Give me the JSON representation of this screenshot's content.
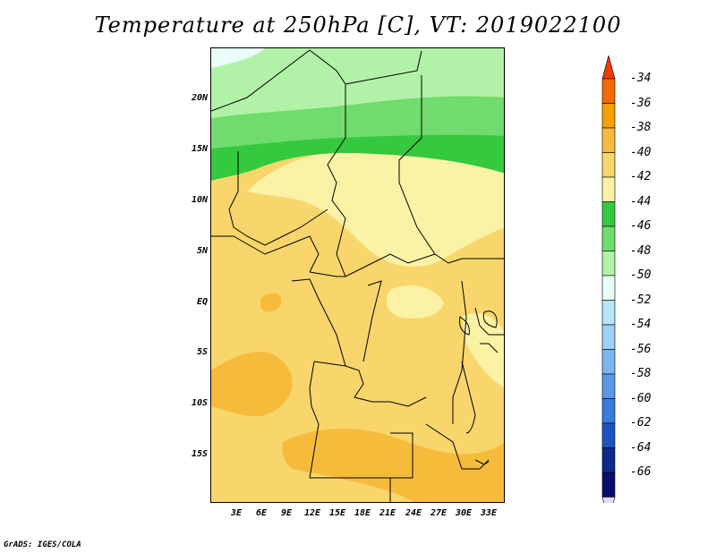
{
  "title": "Temperature at 250hPa [C], VT: 2019022100",
  "footer": "GrADS: IGES/COLA",
  "map": {
    "lat_labels": [
      "20N",
      "15N",
      "10N",
      "5N",
      "EQ",
      "5S",
      "10S",
      "15S"
    ],
    "lon_labels": [
      "3E",
      "6E",
      "9E",
      "12E",
      "15E",
      "18E",
      "21E",
      "24E",
      "27E",
      "30E",
      "33E"
    ]
  },
  "colorbar": {
    "labels": [
      "-34",
      "-36",
      "-38",
      "-40",
      "-42",
      "-44",
      "-46",
      "-48",
      "-50",
      "-52",
      "-54",
      "-56",
      "-58",
      "-60",
      "-62",
      "-64",
      "-66"
    ],
    "colors": [
      "#f23c00",
      "#f26a00",
      "#f5a000",
      "#f7bb3c",
      "#f9d66b",
      "#fbf2a5",
      "#35c93f",
      "#6fdc6d",
      "#b2f2a8",
      "#e7fff7",
      "#b5e5f9",
      "#9fd0f5",
      "#7cb6f0",
      "#5898e6",
      "#3a79de",
      "#1c53c1",
      "#0b2c8c",
      "#070f6b",
      "#ddddf5"
    ]
  }
}
